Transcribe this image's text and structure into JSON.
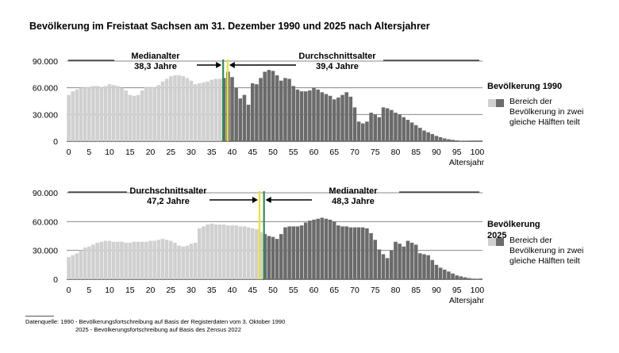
{
  "title": "Bevölkerung im Freistaat Sachsen am 31. Dezember 1990 und 2025 nach Altersjahrer",
  "colors": {
    "light_bar": "#d0d0d0",
    "dark_bar": "#6b6b6b",
    "median_line": "#2e8b57",
    "mean_line": "#f0e030",
    "gridline": "#888888"
  },
  "legend": {
    "swatch_text": "Bereich der Bevölkerung in zwei gleiche Hälften teilt"
  },
  "source": {
    "line1": "Datenquelle: 1990 - Bevölkerungsfortschreibung auf Basis der Registerdaten vom 3. Oktober 1990",
    "line2": "2025 - Bevölkerungsfortschreibung auf Basis des Zensus 2022"
  },
  "chart_data": [
    {
      "type": "bar",
      "legend_title": "Bevölkerung  1990",
      "xlabel": "Altersjahr",
      "ylabel": "",
      "x_ticks": [
        0,
        5,
        10,
        15,
        20,
        25,
        30,
        35,
        40,
        45,
        50,
        55,
        60,
        65,
        70,
        75,
        80,
        85,
        90,
        95,
        100
      ],
      "y_ticks": [
        {
          "value": 0,
          "label": "0"
        },
        {
          "value": 30000,
          "label": "30.000"
        },
        {
          "value": 60000,
          "label": "60.000"
        },
        {
          "value": 90000,
          "label": "90.000"
        }
      ],
      "ylim": [
        0,
        90000
      ],
      "grid": true,
      "median": {
        "label": "Medianalter",
        "value_label": "38,3 Jahre",
        "age": 38.3
      },
      "mean": {
        "label": "Durchschnittsalter",
        "value_label": "39,4 Jahre",
        "age": 39.4
      },
      "split_age": 38,
      "values": [
        52000,
        56000,
        58000,
        60000,
        61000,
        61000,
        62000,
        62000,
        61000,
        62000,
        64000,
        63000,
        62000,
        60000,
        57000,
        52000,
        51000,
        52000,
        57000,
        61000,
        61000,
        61000,
        63000,
        67000,
        70000,
        73000,
        74000,
        74000,
        73000,
        71000,
        68000,
        64000,
        65000,
        66000,
        67000,
        69000,
        70000,
        70000,
        71000,
        78000,
        72000,
        60000,
        48000,
        52000,
        41000,
        65000,
        64000,
        71000,
        78000,
        80000,
        79000,
        74000,
        68000,
        71000,
        70000,
        62000,
        58000,
        56000,
        56000,
        57000,
        60000,
        58000,
        55000,
        53000,
        51000,
        47000,
        49000,
        52000,
        55000,
        50000,
        38000,
        22000,
        20000,
        22000,
        32000,
        30000,
        27000,
        38000,
        37000,
        35000,
        32000,
        30000,
        27000,
        24000,
        21000,
        18000,
        15000,
        12000,
        10000,
        8000,
        6000,
        4500,
        3200,
        2200,
        1500,
        900,
        500,
        300,
        150,
        80,
        40
      ]
    },
    {
      "type": "bar",
      "legend_title": "Bevölkerung 2025",
      "xlabel": "Altersjahr",
      "ylabel": "",
      "x_ticks": [
        0,
        5,
        10,
        15,
        20,
        25,
        30,
        35,
        40,
        45,
        50,
        55,
        60,
        65,
        70,
        75,
        80,
        85,
        90,
        95,
        100
      ],
      "y_ticks": [
        {
          "value": 0,
          "label": "0"
        },
        {
          "value": 30000,
          "label": "30.000"
        },
        {
          "value": 60000,
          "label": "60.000"
        },
        {
          "value": 90000,
          "label": "90.000"
        }
      ],
      "ylim": [
        0,
        90000
      ],
      "grid": true,
      "median": {
        "label": "Medianalter",
        "value_label": "48,3 Jahre",
        "age": 48.3
      },
      "mean": {
        "label": "Durchschnittsalter",
        "value_label": "47,2 Jahre",
        "age": 47.2
      },
      "split_age": 48,
      "values": [
        23000,
        25000,
        27000,
        30000,
        33000,
        34000,
        36000,
        38000,
        39000,
        40000,
        40000,
        39000,
        39000,
        39000,
        38000,
        38000,
        39000,
        39000,
        39000,
        39000,
        40000,
        40000,
        41000,
        42000,
        41000,
        40000,
        38000,
        35000,
        34000,
        35000,
        37000,
        38000,
        53000,
        55000,
        57000,
        58000,
        57000,
        57000,
        57000,
        56000,
        56000,
        56000,
        55000,
        55000,
        54000,
        53000,
        52000,
        49000,
        47000,
        45000,
        44000,
        42000,
        47000,
        54000,
        55000,
        55000,
        55000,
        56000,
        59000,
        61000,
        62000,
        63000,
        64000,
        63000,
        62000,
        60000,
        56000,
        55000,
        55000,
        54000,
        54000,
        54000,
        54000,
        53000,
        48000,
        41000,
        31000,
        26000,
        22000,
        30000,
        39000,
        37000,
        34000,
        40000,
        38000,
        36000,
        27000,
        26000,
        25000,
        20000,
        15000,
        12000,
        10000,
        8000,
        6000,
        4000,
        3000,
        2000,
        1200,
        600,
        300
      ]
    }
  ]
}
